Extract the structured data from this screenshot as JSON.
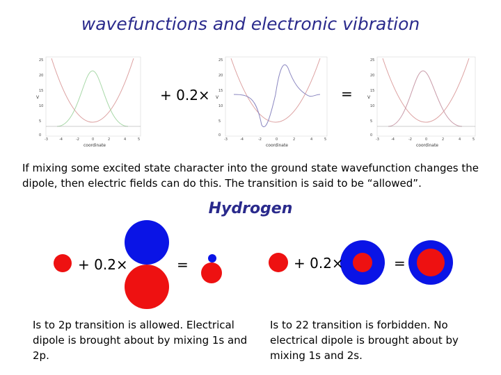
{
  "title": "wavefunctions and electronic vibration",
  "top_row": {
    "op_plus": "+ 0.2×",
    "op_equals": "="
  },
  "plots": {
    "xlabel": "coordinate",
    "ylabel": "V",
    "x_ticks": [
      "-3",
      "-4",
      "-2",
      "0",
      "2",
      "4",
      "5"
    ],
    "y_ticks": [
      "25",
      "20",
      "15",
      "10",
      "5",
      "0"
    ],
    "colors": {
      "potential": "#dca0a0",
      "ground": "#a8d8a8",
      "excited": "#8a86c0",
      "mixed": "#c89aa8"
    }
  },
  "explanation": "If mixing some excited state character into the ground state wavefunction changes the dipole, then electric fields can do this. The transition is said to be “allowed”.",
  "hydrogen": {
    "heading": "Hydrogen",
    "left_group": {
      "op_plus": "+ 0.2×",
      "op_equals": "="
    },
    "right_group": {
      "op_plus": "+ 0.2×",
      "op_equals": "="
    },
    "colors": {
      "positive": "#ee1111",
      "negative": "#0a14e6"
    },
    "caption_left": "Is to 2p transition is allowed. Electrical dipole is brought about by mixing 1s and 2p.",
    "caption_right": "Is to 22 transition is forbidden. No electrical dipole is brought about by mixing 1s and 2s."
  }
}
